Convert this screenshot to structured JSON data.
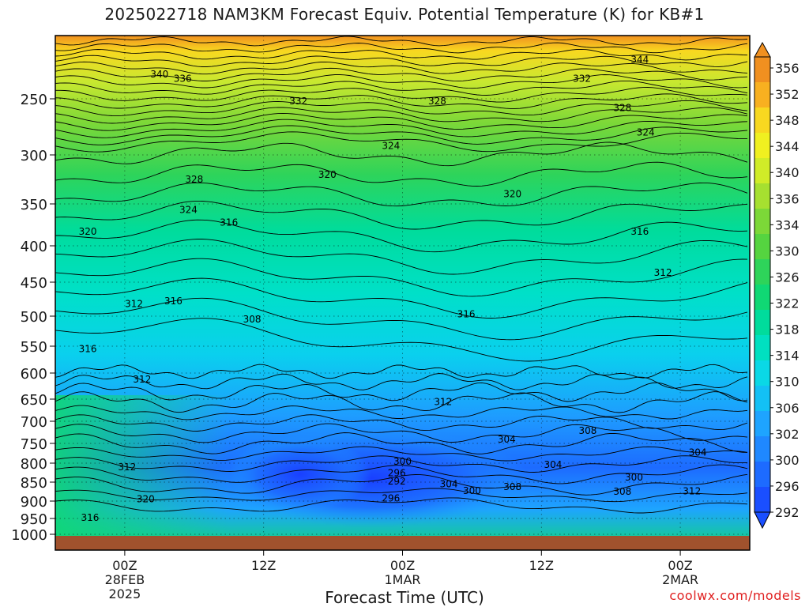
{
  "title": "2025022718 NAM3KM Forecast Equiv. Potential Temperature (K) for KB#1",
  "credit": "coolwx.com/models",
  "colors": {
    "ground": "#a0522d",
    "scale": [
      "#1a4fff",
      "#1d6bff",
      "#1f88ff",
      "#1ea4ff",
      "#13c0f5",
      "#0ad8e6",
      "#00e0c0",
      "#00dc9c",
      "#10d874",
      "#2ed45a",
      "#55d440",
      "#7cd838",
      "#a6e030",
      "#d0ec28",
      "#f0f020",
      "#f8d820",
      "#f8b020",
      "#f09020"
    ]
  },
  "chart_data": {
    "type": "heatmap",
    "variable": "Equiv. Potential Temperature (K)",
    "model": "NAM3KM",
    "run": "2025022718",
    "xlabel": "Forecast Time (UTC)",
    "ylabel": "",
    "y_scale": "pressure (log-like, decreasing upward)",
    "yticks": [
      250,
      300,
      350,
      400,
      450,
      500,
      550,
      600,
      650,
      700,
      750,
      800,
      850,
      900,
      950,
      1000
    ],
    "ytick_labels": [
      "250",
      "300",
      "350",
      "400",
      "450",
      "500",
      "550",
      "600",
      "650",
      "700",
      "750",
      "800",
      "850",
      "900",
      "950",
      "1000"
    ],
    "xticks": [
      {
        "label": "00Z",
        "sub1": "28FEB",
        "sub2": "2025",
        "hour": 6
      },
      {
        "label": "12Z",
        "sub1": "",
        "sub2": "",
        "hour": 18
      },
      {
        "label": "00Z",
        "sub1": "1MAR",
        "sub2": "",
        "hour": 30
      },
      {
        "label": "12Z",
        "sub1": "",
        "sub2": "",
        "hour": 42
      },
      {
        "label": "00Z",
        "sub1": "2MAR",
        "sub2": "",
        "hour": 54
      }
    ],
    "xlim": [
      0,
      60
    ],
    "ylim": [
      1000,
      200
    ],
    "colorbar": {
      "levels": [
        292,
        296,
        300,
        302,
        306,
        310,
        314,
        318,
        322,
        326,
        330,
        334,
        336,
        340,
        344,
        348,
        352,
        356
      ],
      "labels": [
        "356",
        "352",
        "348",
        "344",
        "340",
        "336",
        "334",
        "330",
        "326",
        "322",
        "318",
        "314",
        "310",
        "306",
        "302",
        "300",
        "296",
        "292"
      ]
    },
    "contour_labels": [
      {
        "text": "344",
        "x": 50.5,
        "p": 215
      },
      {
        "text": "340",
        "x": 9.0,
        "p": 228
      },
      {
        "text": "336",
        "x": 11.0,
        "p": 232
      },
      {
        "text": "332",
        "x": 21.0,
        "p": 252
      },
      {
        "text": "328",
        "x": 33.0,
        "p": 252
      },
      {
        "text": "332",
        "x": 45.5,
        "p": 232
      },
      {
        "text": "328",
        "x": 49.0,
        "p": 258
      },
      {
        "text": "324",
        "x": 51.0,
        "p": 280
      },
      {
        "text": "324",
        "x": 29.0,
        "p": 292
      },
      {
        "text": "320",
        "x": 23.5,
        "p": 320
      },
      {
        "text": "328",
        "x": 12.0,
        "p": 325
      },
      {
        "text": "324",
        "x": 11.5,
        "p": 357
      },
      {
        "text": "316",
        "x": 15.0,
        "p": 372
      },
      {
        "text": "320",
        "x": 2.8,
        "p": 383
      },
      {
        "text": "320",
        "x": 39.5,
        "p": 340
      },
      {
        "text": "316",
        "x": 50.5,
        "p": 383
      },
      {
        "text": "312",
        "x": 52.5,
        "p": 437
      },
      {
        "text": "312",
        "x": 6.8,
        "p": 482
      },
      {
        "text": "316",
        "x": 10.2,
        "p": 478
      },
      {
        "text": "308",
        "x": 17.0,
        "p": 505
      },
      {
        "text": "316",
        "x": 35.5,
        "p": 497
      },
      {
        "text": "316",
        "x": 2.8,
        "p": 555
      },
      {
        "text": "312",
        "x": 7.5,
        "p": 612
      },
      {
        "text": "312",
        "x": 33.5,
        "p": 656
      },
      {
        "text": "308",
        "x": 46.0,
        "p": 721
      },
      {
        "text": "304",
        "x": 39.0,
        "p": 741
      },
      {
        "text": "304",
        "x": 55.5,
        "p": 773
      },
      {
        "text": "300",
        "x": 30.0,
        "p": 796
      },
      {
        "text": "312",
        "x": 6.2,
        "p": 810
      },
      {
        "text": "296",
        "x": 29.5,
        "p": 826
      },
      {
        "text": "292",
        "x": 29.5,
        "p": 848
      },
      {
        "text": "304",
        "x": 34.0,
        "p": 855
      },
      {
        "text": "300",
        "x": 36.0,
        "p": 873
      },
      {
        "text": "308",
        "x": 39.5,
        "p": 862
      },
      {
        "text": "304",
        "x": 43.0,
        "p": 804
      },
      {
        "text": "300",
        "x": 50.0,
        "p": 837
      },
      {
        "text": "308",
        "x": 49.0,
        "p": 875
      },
      {
        "text": "312",
        "x": 55.0,
        "p": 874
      },
      {
        "text": "296",
        "x": 29.0,
        "p": 893
      },
      {
        "text": "320",
        "x": 7.8,
        "p": 895
      },
      {
        "text": "316",
        "x": 3.0,
        "p": 948
      }
    ],
    "grid": true,
    "legend": "colorbar right"
  }
}
